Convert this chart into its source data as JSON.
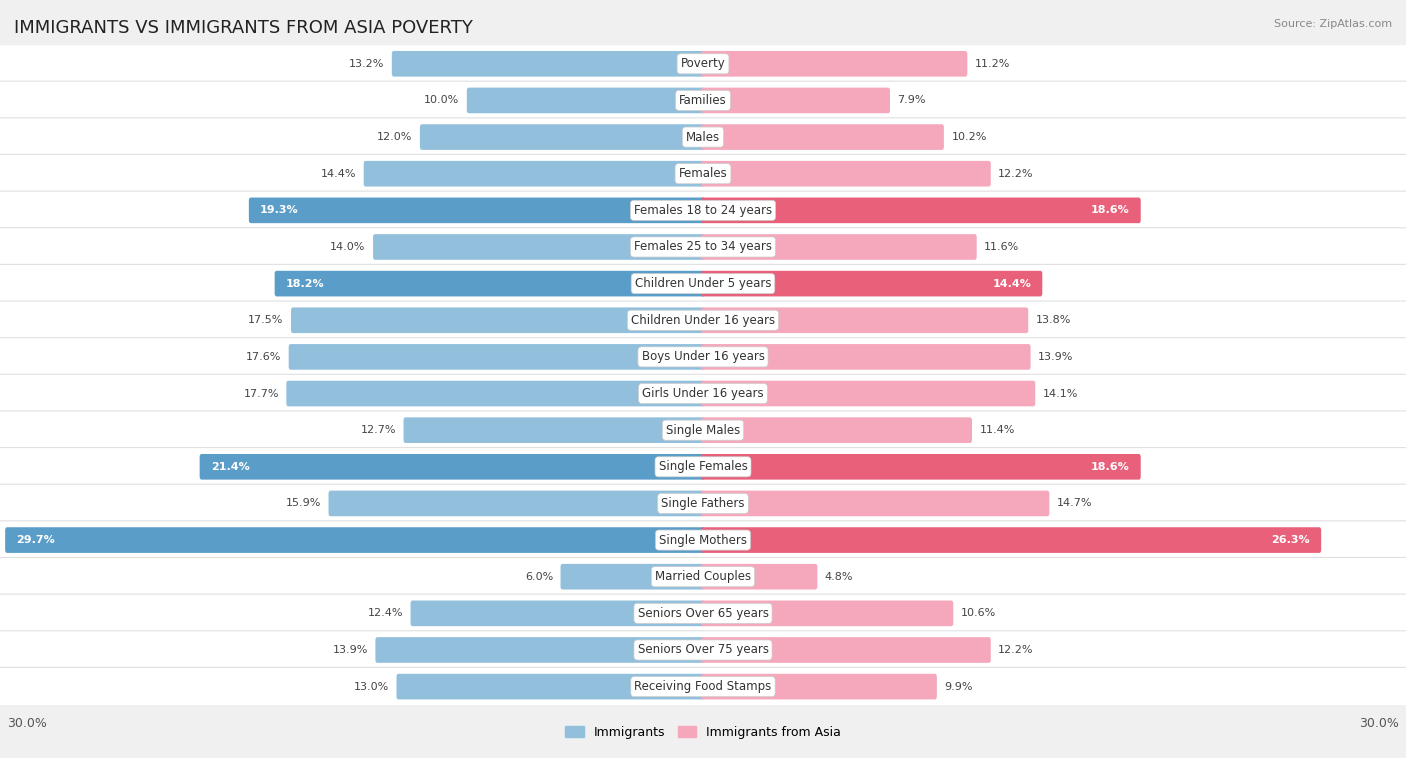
{
  "title": "IMMIGRANTS VS IMMIGRANTS FROM ASIA POVERTY",
  "source": "Source: ZipAtlas.com",
  "categories": [
    "Poverty",
    "Families",
    "Males",
    "Females",
    "Females 18 to 24 years",
    "Females 25 to 34 years",
    "Children Under 5 years",
    "Children Under 16 years",
    "Boys Under 16 years",
    "Girls Under 16 years",
    "Single Males",
    "Single Females",
    "Single Fathers",
    "Single Mothers",
    "Married Couples",
    "Seniors Over 65 years",
    "Seniors Over 75 years",
    "Receiving Food Stamps"
  ],
  "immigrants": [
    13.2,
    10.0,
    12.0,
    14.4,
    19.3,
    14.0,
    18.2,
    17.5,
    17.6,
    17.7,
    12.7,
    21.4,
    15.9,
    29.7,
    6.0,
    12.4,
    13.9,
    13.0
  ],
  "immigrants_asia": [
    11.2,
    7.9,
    10.2,
    12.2,
    18.6,
    11.6,
    14.4,
    13.8,
    13.9,
    14.1,
    11.4,
    18.6,
    14.7,
    26.3,
    4.8,
    10.6,
    12.2,
    9.9
  ],
  "immigrants_color": "#92bfdc",
  "immigrants_asia_color": "#f5a8bc",
  "immigrants_highlight_color": "#5b9dc9",
  "immigrants_asia_highlight_color": "#e8607a",
  "highlight_rows": [
    4,
    6,
    11,
    13
  ],
  "axis_limit": 30.0,
  "background_color": "#f0f0f0",
  "row_bg_color": "#ffffff",
  "label_fontsize": 8.5,
  "value_fontsize": 8,
  "title_fontsize": 13
}
